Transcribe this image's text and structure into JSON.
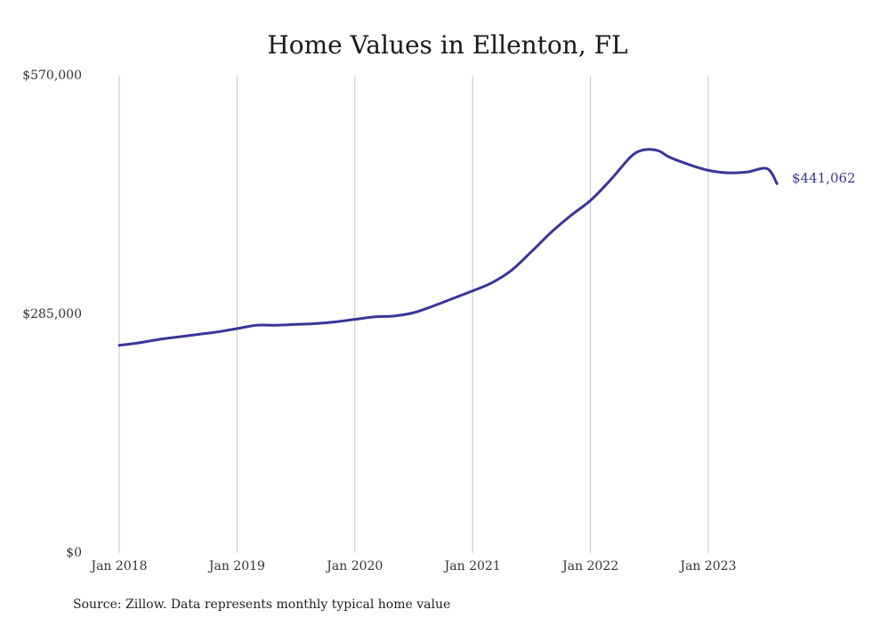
{
  "chart_data": {
    "type": "line",
    "title": "Home Values in Ellenton, FL",
    "xlabel": "",
    "ylabel": "",
    "x_ticks": [
      "Jan 2018",
      "Jan 2019",
      "Jan 2020",
      "Jan 2021",
      "Jan 2022",
      "Jan 2023"
    ],
    "y_ticks": [
      {
        "value": 0,
        "label": "$0"
      },
      {
        "value": 285000,
        "label": "$285,000"
      },
      {
        "value": 570000,
        "label": "$570,000"
      }
    ],
    "ylim": [
      0,
      570000
    ],
    "xlim": [
      "2018-01",
      "2023-08"
    ],
    "grid": {
      "vertical": true,
      "horizontal": false
    },
    "line_color": "#3a3598",
    "end_label": "$441,062",
    "series": [
      {
        "x": [
          "2018-01",
          "2018-03",
          "2018-05",
          "2018-07",
          "2018-09",
          "2018-11",
          "2019-01",
          "2019-03",
          "2019-05",
          "2019-07",
          "2019-09",
          "2019-11",
          "2020-01",
          "2020-03",
          "2020-05",
          "2020-07",
          "2020-09",
          "2020-11",
          "2021-01",
          "2021-03",
          "2021-05",
          "2021-07",
          "2021-09",
          "2021-11",
          "2022-01",
          "2022-03",
          "2022-05",
          "2022-06",
          "2022-07",
          "2022-08",
          "2022-09",
          "2022-11",
          "2023-01",
          "2023-03",
          "2023-05",
          "2023-07",
          "2023-08"
        ],
        "values": [
          248000,
          251000,
          255000,
          258000,
          261000,
          264000,
          268000,
          272000,
          272000,
          273000,
          274000,
          276000,
          279000,
          282000,
          283000,
          287000,
          295000,
          304000,
          313000,
          323000,
          338000,
          360000,
          383000,
          403000,
          421000,
          445000,
          472000,
          480000,
          482000,
          480000,
          473000,
          464000,
          457000,
          454000,
          455000,
          459000,
          441062
        ]
      }
    ],
    "source": "Source: Zillow. Data represents monthly typical home value"
  }
}
